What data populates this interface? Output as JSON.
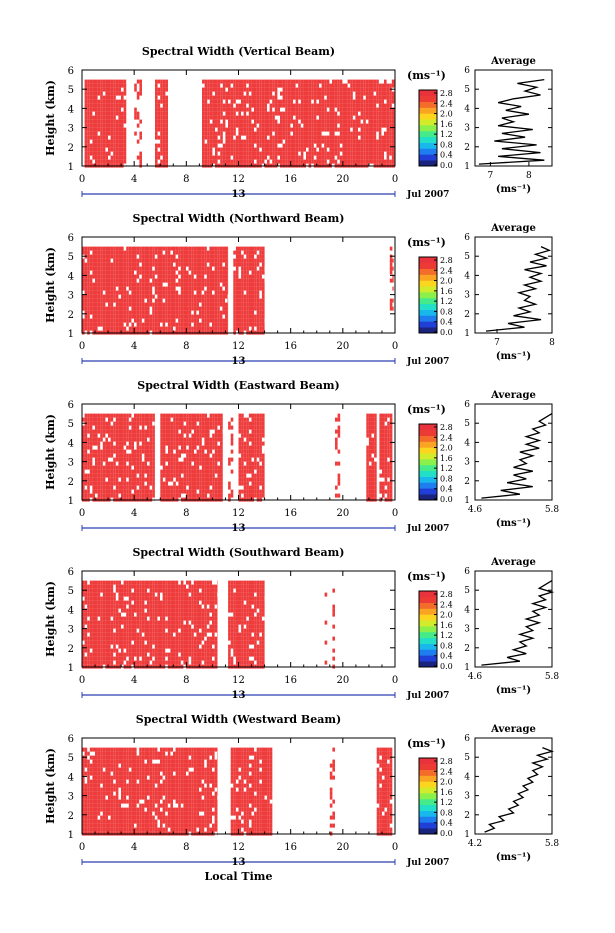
{
  "figure": {
    "xlabel": "Local Time",
    "ylabel": "Height (km)",
    "unit_label": "(ms⁻¹)",
    "date_label": "Jul 2007",
    "date_axis_label": "13",
    "avg_title": "Average",
    "avg_xlabel": "(ms⁻¹)",
    "colorbar_colors": [
      "#1a237e",
      "#1f3fd6",
      "#1e7ef0",
      "#18b8ec",
      "#22e0c8",
      "#45eb8a",
      "#8cf04a",
      "#d2ec2c",
      "#fbd51e",
      "#fba423",
      "#f46c2a",
      "#ec3b35",
      "#e8333d"
    ],
    "data_color": "#ee3b3b"
  },
  "chart_data": [
    {
      "type": "heatmap",
      "title": "Spectral Width (Vertical Beam)",
      "xlim": [
        0,
        24
      ],
      "ylim": [
        1,
        6
      ],
      "x_ticks": [
        "0",
        "4",
        "8",
        "12",
        "16",
        "20",
        "0"
      ],
      "y_ticks": [
        "1",
        "2",
        "3",
        "4",
        "5",
        "6"
      ],
      "colorbar_ticks": [
        "0.0",
        "0.4",
        "0.8",
        "1.2",
        "1.6",
        "2.0",
        "2.4",
        "2.8"
      ],
      "filled_intervals_hours": [
        [
          0.2,
          3.4
        ],
        [
          4.0,
          4.6
        ],
        [
          5.6,
          6.6
        ],
        [
          9.2,
          24.0
        ]
      ],
      "avg_profile": {
        "xlim": [
          6.6,
          8.6
        ],
        "x_ticks": [
          "7",
          "8"
        ],
        "height_km": [
          1.1,
          1.3,
          1.5,
          1.7,
          1.9,
          2.1,
          2.3,
          2.5,
          2.7,
          2.9,
          3.1,
          3.3,
          3.5,
          3.7,
          3.9,
          4.1,
          4.3,
          4.5,
          4.7,
          4.9,
          5.1,
          5.3,
          5.5
        ],
        "value_ms": [
          6.7,
          8.4,
          7.2,
          8.3,
          7.3,
          8.2,
          7.1,
          7.9,
          7.3,
          8.1,
          7.2,
          7.6,
          7.3,
          8.0,
          7.4,
          7.8,
          7.2,
          7.6,
          8.3,
          7.9,
          8.2,
          7.7,
          8.4
        ]
      }
    },
    {
      "type": "heatmap",
      "title": "Spectral Width (Northward Beam)",
      "xlim": [
        0,
        24
      ],
      "ylim": [
        1,
        6
      ],
      "x_ticks": [
        "0",
        "4",
        "8",
        "12",
        "16",
        "20",
        "0"
      ],
      "y_ticks": [
        "1",
        "2",
        "3",
        "4",
        "5",
        "6"
      ],
      "colorbar_ticks": [
        "0.0",
        "0.4",
        "0.8",
        "1.2",
        "1.6",
        "2.0",
        "2.4",
        "2.8"
      ],
      "filled_intervals_hours": [
        [
          0.0,
          11.2
        ],
        [
          11.6,
          14.0
        ],
        [
          23.6,
          23.9
        ]
      ],
      "avg_profile": {
        "xlim": [
          6.6,
          8.0
        ],
        "x_ticks": [
          "7",
          "8"
        ],
        "height_km": [
          1.1,
          1.3,
          1.5,
          1.7,
          1.9,
          2.1,
          2.3,
          2.5,
          2.7,
          2.9,
          3.1,
          3.3,
          3.5,
          3.7,
          3.9,
          4.1,
          4.3,
          4.5,
          4.7,
          4.9,
          5.1,
          5.3,
          5.5
        ],
        "value_ms": [
          6.8,
          7.5,
          7.2,
          7.8,
          7.3,
          7.6,
          7.4,
          7.7,
          7.5,
          7.6,
          7.4,
          7.7,
          7.5,
          7.8,
          7.6,
          7.8,
          7.5,
          7.9,
          7.6,
          7.9,
          7.7,
          7.95,
          7.8
        ]
      }
    },
    {
      "type": "heatmap",
      "title": "Spectral Width (Eastward Beam)",
      "xlim": [
        0,
        24
      ],
      "ylim": [
        1,
        6
      ],
      "x_ticks": [
        "0",
        "4",
        "8",
        "12",
        "16",
        "20",
        "0"
      ],
      "y_ticks": [
        "1",
        "2",
        "3",
        "4",
        "5",
        "6"
      ],
      "colorbar_ticks": [
        "0.0",
        "0.4",
        "0.8",
        "1.2",
        "1.6",
        "2.0",
        "2.4",
        "2.8"
      ],
      "filled_intervals_hours": [
        [
          0.0,
          5.6
        ],
        [
          6.0,
          10.8
        ],
        [
          11.2,
          11.6
        ],
        [
          12.0,
          14.0
        ],
        [
          19.4,
          19.8
        ],
        [
          21.8,
          22.6
        ],
        [
          22.8,
          23.8
        ]
      ],
      "avg_profile": {
        "xlim": [
          4.6,
          5.8
        ],
        "x_ticks": [
          "4.6",
          "5.8"
        ],
        "height_km": [
          1.1,
          1.3,
          1.5,
          1.7,
          1.9,
          2.1,
          2.3,
          2.5,
          2.7,
          2.9,
          3.1,
          3.3,
          3.5,
          3.7,
          3.9,
          4.1,
          4.3,
          4.5,
          4.7,
          4.9,
          5.1,
          5.3,
          5.5
        ],
        "value_ms": [
          4.7,
          5.3,
          5.0,
          5.5,
          5.1,
          5.4,
          5.2,
          5.5,
          5.2,
          5.4,
          5.3,
          5.5,
          5.3,
          5.6,
          5.4,
          5.6,
          5.4,
          5.6,
          5.5,
          5.7,
          5.6,
          5.7,
          5.8
        ]
      }
    },
    {
      "type": "heatmap",
      "title": "Spectral Width (Southward Beam)",
      "xlim": [
        0,
        24
      ],
      "ylim": [
        1,
        6
      ],
      "x_ticks": [
        "0",
        "4",
        "8",
        "12",
        "16",
        "20",
        "0"
      ],
      "y_ticks": [
        "1",
        "2",
        "3",
        "4",
        "5",
        "6"
      ],
      "colorbar_ticks": [
        "0.0",
        "0.4",
        "0.8",
        "1.2",
        "1.6",
        "2.0",
        "2.4",
        "2.8"
      ],
      "filled_intervals_hours": [
        [
          0.0,
          10.4
        ],
        [
          11.2,
          14.0
        ],
        [
          18.6,
          18.8
        ],
        [
          19.2,
          19.4
        ]
      ],
      "avg_profile": {
        "xlim": [
          4.6,
          5.8
        ],
        "x_ticks": [
          "4.6",
          "5.8"
        ],
        "height_km": [
          1.1,
          1.3,
          1.5,
          1.7,
          1.9,
          2.1,
          2.3,
          2.5,
          2.7,
          2.9,
          3.1,
          3.3,
          3.5,
          3.7,
          3.9,
          4.1,
          4.3,
          4.5,
          4.7,
          4.9,
          5.1,
          5.3,
          5.5
        ],
        "value_ms": [
          4.7,
          5.3,
          5.1,
          5.4,
          5.2,
          5.4,
          5.3,
          5.5,
          5.3,
          5.5,
          5.4,
          5.6,
          5.4,
          5.6,
          5.5,
          5.7,
          5.5,
          5.7,
          5.6,
          5.8,
          5.6,
          5.7,
          5.8
        ]
      }
    },
    {
      "type": "heatmap",
      "title": "Spectral Width (Westward Beam)",
      "xlim": [
        0,
        24
      ],
      "ylim": [
        1,
        6
      ],
      "x_ticks": [
        "0",
        "4",
        "8",
        "12",
        "16",
        "20",
        "0"
      ],
      "y_ticks": [
        "1",
        "2",
        "3",
        "4",
        "5",
        "6"
      ],
      "colorbar_ticks": [
        "0.0",
        "0.4",
        "0.8",
        "1.2",
        "1.6",
        "2.0",
        "2.4",
        "2.8"
      ],
      "filled_intervals_hours": [
        [
          0.0,
          10.4
        ],
        [
          11.4,
          14.6
        ],
        [
          19.0,
          19.4
        ],
        [
          22.6,
          23.8
        ]
      ],
      "avg_profile": {
        "xlim": [
          4.2,
          5.8
        ],
        "x_ticks": [
          "4.2",
          "5.8"
        ],
        "height_km": [
          1.1,
          1.3,
          1.5,
          1.7,
          1.9,
          2.1,
          2.3,
          2.5,
          2.7,
          2.9,
          3.1,
          3.3,
          3.5,
          3.7,
          3.9,
          4.1,
          4.3,
          4.5,
          4.7,
          4.9,
          5.1,
          5.3,
          5.5
        ],
        "value_ms": [
          4.4,
          4.6,
          4.5,
          4.8,
          4.7,
          5.0,
          4.9,
          5.1,
          5.0,
          5.2,
          5.1,
          5.3,
          5.2,
          5.4,
          5.3,
          5.5,
          5.4,
          5.6,
          5.4,
          5.7,
          5.5,
          5.8,
          5.6
        ]
      }
    }
  ]
}
